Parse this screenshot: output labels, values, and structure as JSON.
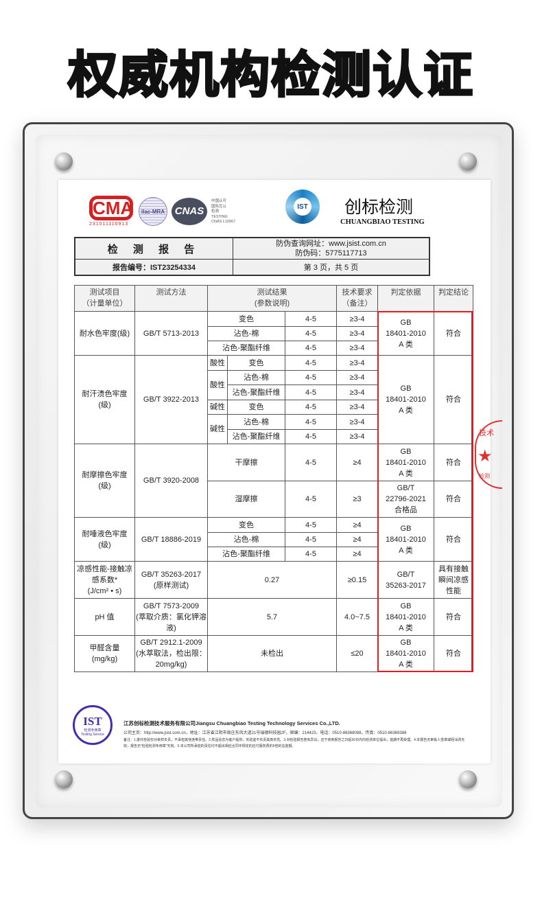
{
  "banner_title": "权威机构检测认证",
  "logos": {
    "cma": "CMA",
    "cma_number": "231011110913",
    "ilac": "ilac-MRA",
    "cnas": "CNAS",
    "cnas_text": "中国认可\n国际互认\n检测\nTESTING\nCNAS L10567",
    "ist": "IST",
    "brand_cn": "创标检测",
    "brand_en": "CHUANGBIAO TESTING"
  },
  "report_header": {
    "title": "检 测 报 告",
    "query_url": "防伪查询网址：www.jsist.com.cn",
    "anti_fake_code": "防伪码：5775117713",
    "report_no": "报告编号：IST23254334",
    "page": "第 3 页，共 5 页"
  },
  "table": {
    "header": [
      "测试项目\n（计量单位）",
      "测试方法",
      "测试结果\n(参数说明)",
      "技术要求\n（备注）",
      "判定依据",
      "判定结论"
    ],
    "rows": [
      [
        {
          "t": "耐水色牢度(级)",
          "rs": 3
        },
        {
          "t": "GB/T 5713-2013",
          "rs": 3
        },
        {
          "t": "变色",
          "cs": 2
        },
        {
          "t": "4-5"
        },
        {
          "t": "≥3-4"
        },
        {
          "t": "GB\n18401-2010\nA 类",
          "rs": 3
        },
        {
          "t": "符合",
          "rs": 3
        }
      ],
      [
        {
          "t": "沾色-棉",
          "cs": 2
        },
        {
          "t": "4-5"
        },
        {
          "t": "≥3-4"
        }
      ],
      [
        {
          "t": "沾色-聚酯纤维",
          "cs": 2
        },
        {
          "t": "4-5"
        },
        {
          "t": "≥3-4"
        }
      ],
      [
        {
          "t": "耐汗渍色牢度\n(级)",
          "rs": 6
        },
        {
          "t": "GB/T 3922-2013",
          "rs": 6
        },
        {
          "t": "酸性"
        },
        {
          "t": "变色"
        },
        {
          "t": "4-5"
        },
        {
          "t": "≥3-4"
        },
        {
          "t": "GB\n18401-2010\nA 类",
          "rs": 6
        },
        {
          "t": "符合",
          "rs": 6
        }
      ],
      [
        {
          "t": "酸性",
          "rs": 2
        },
        {
          "t": "沾色-棉"
        },
        {
          "t": "4-5"
        },
        {
          "t": "≥3-4"
        }
      ],
      [
        {
          "t": "沾色-聚酯纤维"
        },
        {
          "t": "4-5"
        },
        {
          "t": "≥3-4"
        }
      ],
      [
        {
          "t": "碱性"
        },
        {
          "t": "变色"
        },
        {
          "t": "4-5"
        },
        {
          "t": "≥3-4"
        }
      ],
      [
        {
          "t": "碱性",
          "rs": 2
        },
        {
          "t": "沾色-棉"
        },
        {
          "t": "4-5"
        },
        {
          "t": "≥3-4"
        }
      ],
      [
        {
          "t": "沾色-聚酯纤维"
        },
        {
          "t": "4-5"
        },
        {
          "t": "≥3-4"
        }
      ],
      [
        {
          "t": "耐摩擦色牢度\n(级)",
          "rs": 2
        },
        {
          "t": "GB/T 3920-2008",
          "rs": 2
        },
        {
          "t": "干摩擦",
          "cs": 2
        },
        {
          "t": "4-5"
        },
        {
          "t": "≥4"
        },
        {
          "t": "GB\n18401-2010\nA 类"
        },
        {
          "t": "符合"
        }
      ],
      [
        {
          "t": "湿摩擦",
          "cs": 2
        },
        {
          "t": "4-5"
        },
        {
          "t": "≥3"
        },
        {
          "t": "GB/T\n22796-2021\n合格品"
        },
        {
          "t": "符合"
        }
      ],
      [
        {
          "t": "耐唾液色牢度\n(级)",
          "rs": 3
        },
        {
          "t": "GB/T 18886-2019",
          "rs": 3
        },
        {
          "t": "变色",
          "cs": 2
        },
        {
          "t": "4-5"
        },
        {
          "t": "≥4"
        },
        {
          "t": "GB\n18401-2010\nA 类",
          "rs": 3
        },
        {
          "t": "符合",
          "rs": 3
        }
      ],
      [
        {
          "t": "沾色-棉",
          "cs": 2
        },
        {
          "t": "4-5"
        },
        {
          "t": "≥4"
        }
      ],
      [
        {
          "t": "沾色-聚酯纤维",
          "cs": 2
        },
        {
          "t": "4-5"
        },
        {
          "t": "≥4"
        }
      ],
      [
        {
          "t": "凉感性能-接触凉\n感系数*\n(J/cm² • s)"
        },
        {
          "t": "GB/T 35263-2017\n(原样测试)"
        },
        {
          "t": "0.27",
          "cs": 3
        },
        {
          "t": "≥0.15"
        },
        {
          "t": "GB/T\n35263-2017"
        },
        {
          "t": "具有接触\n瞬间凉感\n性能"
        }
      ],
      [
        {
          "t": "pH 值"
        },
        {
          "t": "GB/T 7573-2009\n(萃取介质：氯化钾溶\n液)"
        },
        {
          "t": "5.7",
          "cs": 3
        },
        {
          "t": "4.0~7.5"
        },
        {
          "t": "GB\n18401-2010\nA 类"
        },
        {
          "t": "符合"
        }
      ],
      [
        {
          "t": "甲醛含量\n(mg/kg)"
        },
        {
          "t": "GB/T 2912.1-2009\n(水萃取法，检出限：\n20mg/kg)"
        },
        {
          "t": "未检出",
          "cs": 3
        },
        {
          "t": "≤20"
        },
        {
          "t": "GB\n18401-2010\nA 类"
        },
        {
          "t": "符合"
        }
      ]
    ]
  },
  "stamp_text": "技术 ★ 检测",
  "footer": {
    "seal": "IST",
    "seal_sub": "检测专用章\nTesting Service",
    "company": "江苏创标检测技术服务有限公司Jiangsu Chuangbiao Testing Technology Services Co.,LTD.",
    "address": "公司主页：http://www.jsist.com.cn，地址：江苏省江阴市周庄东风大道21号瑞德科技园2F，邮编：214423，电话：0510-86368088，传真：0510-86369388",
    "note": "备注：1.委托检验仅对来样负责，不承担其他连带责任。2.样品信息为客户提供，实验室不负责其真实性。3.对检验报告若有异议，应于收到报告之日起30日内向检测单位提出，逾期不再受理。4.本报告无审批人签章或经涂改无效，报告无\"检验检测专用章\"无效。5.本公司所承担的责任均不超出相应合同中规定的应付服务费的5倍的总金额。"
  },
  "colors": {
    "highlight_box": "#e8191f",
    "cma": "#d42020",
    "seal": "#3d2fb0",
    "ist_logo": "#1a7fc4"
  }
}
